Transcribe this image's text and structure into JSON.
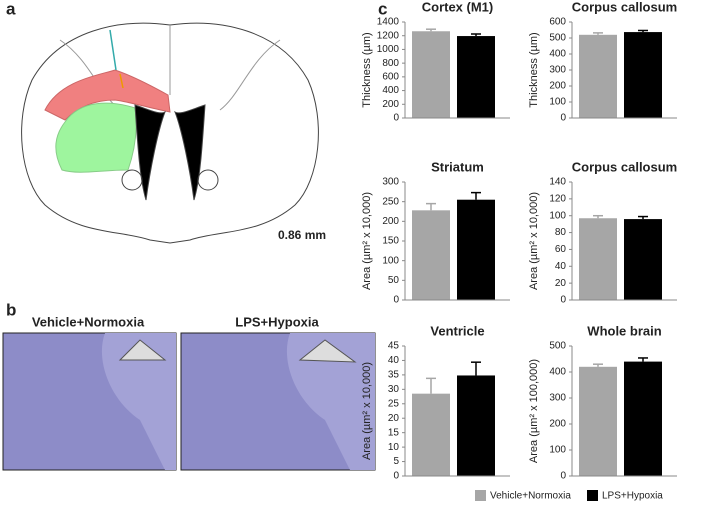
{
  "panels": {
    "a": "a",
    "b": "b",
    "c": "c"
  },
  "scale_label": "0.86 mm",
  "image_labels": [
    "Vehicle+Normoxia",
    "LPS+Hypoxia"
  ],
  "legend": [
    {
      "name": "Vehicle+Normoxia",
      "color": "#a6a6a6"
    },
    {
      "name": "LPS+Hypoxia",
      "color": "#000000"
    }
  ],
  "chart_data": [
    {
      "type": "bar",
      "title": "Cortex (M1)",
      "ylabel": "Thickness (µm)",
      "values": [
        1265,
        1195
      ],
      "errors": [
        30,
        30
      ],
      "ylim": [
        0,
        1400
      ],
      "yticks": [
        0,
        200,
        400,
        600,
        800,
        1000,
        1200,
        1400
      ]
    },
    {
      "type": "bar",
      "title": "Corpus callosum",
      "ylabel": "Thickness (µm)",
      "values": [
        520,
        537
      ],
      "errors": [
        12,
        10
      ],
      "ylim": [
        0,
        600
      ],
      "yticks": [
        0,
        100,
        200,
        300,
        400,
        500,
        600
      ]
    },
    {
      "type": "bar",
      "title": "Striatum",
      "ylabel": "Area (µm² x 10,000)",
      "values": [
        228,
        255
      ],
      "errors": [
        17,
        18
      ],
      "ylim": [
        0,
        300
      ],
      "yticks": [
        0,
        50,
        100,
        150,
        200,
        250,
        300
      ]
    },
    {
      "type": "bar",
      "title": "Corpus callosum",
      "ylabel": "Area (µm² x 10,000)",
      "values": [
        97,
        96
      ],
      "errors": [
        3,
        3
      ],
      "ylim": [
        0,
        140
      ],
      "yticks": [
        0,
        20,
        40,
        60,
        80,
        100,
        120,
        140
      ]
    },
    {
      "type": "bar",
      "title": "Ventricle",
      "ylabel": "Area (µm² x 10,000)",
      "values": [
        28.5,
        34.8
      ],
      "errors": [
        5.3,
        4.6
      ],
      "ylim": [
        0,
        45
      ],
      "yticks": [
        0,
        5,
        10,
        15,
        20,
        25,
        30,
        35,
        40,
        45
      ]
    },
    {
      "type": "bar",
      "title": "Whole brain",
      "ylabel": "Area (µm² x 100,000)",
      "values": [
        420,
        440
      ],
      "errors": [
        10,
        14
      ],
      "ylim": [
        0,
        500
      ],
      "yticks": [
        0,
        100,
        200,
        300,
        400,
        500
      ]
    }
  ]
}
